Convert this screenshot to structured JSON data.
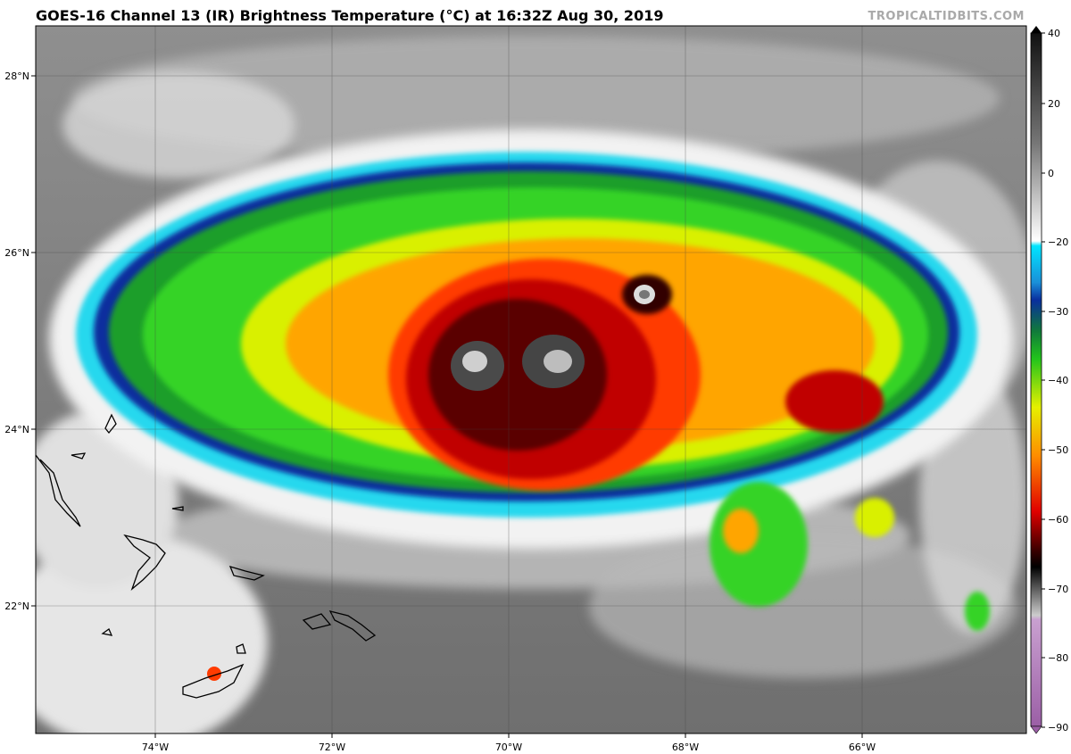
{
  "header": {
    "title": "GOES-16 Channel 13 (IR) Brightness Temperature (°C) at 16:32Z Aug 30, 2019",
    "credit": "TROPICALTIDBITS.COM"
  },
  "map": {
    "lon_labels": [
      "74°W",
      "72°W",
      "70°W",
      "68°W",
      "66°W"
    ],
    "lat_labels": [
      "28°N",
      "26°N",
      "24°N",
      "22°N"
    ]
  },
  "colorbar": {
    "units": "°C",
    "range": [
      -90,
      40
    ],
    "tick_labels": [
      "40",
      "20",
      "0",
      "−20",
      "−30",
      "−40",
      "−50",
      "−60",
      "−70",
      "−80",
      "−90"
    ],
    "colors": {
      "warm_top": "#111111",
      "warm_mid": "#777777",
      "warm_low": "#ffffff",
      "cyan": "#00e5ff",
      "blue": "#0a2f9e",
      "green": "#22c41c",
      "yellow": "#e6f000",
      "orange": "#ff8c00",
      "red": "#e00000",
      "dark_red": "#500000",
      "purple": "#9b5fa6"
    }
  }
}
